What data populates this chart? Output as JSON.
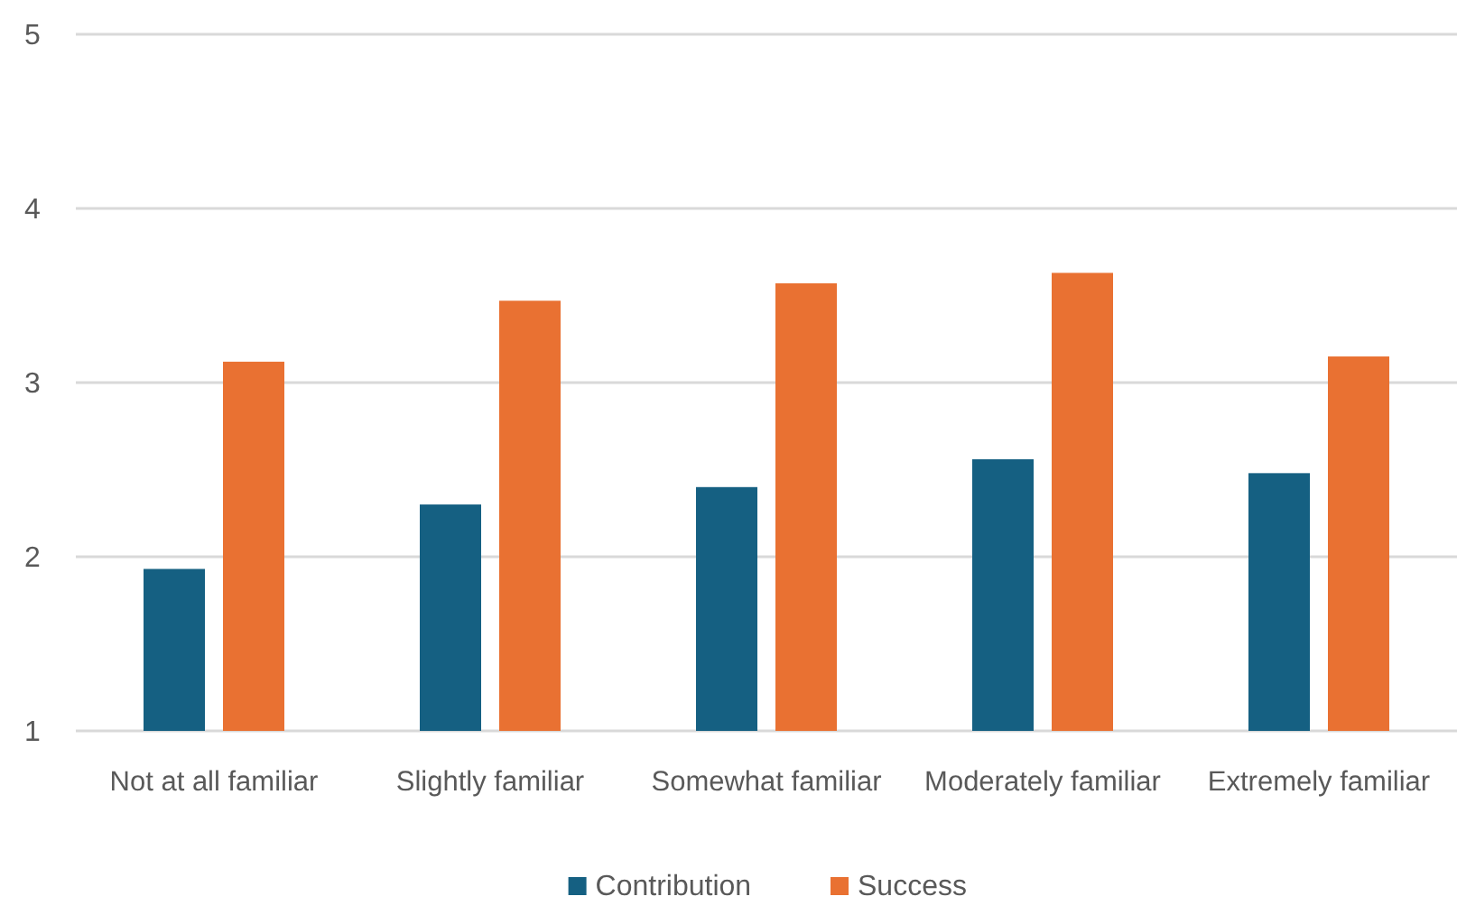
{
  "chart_data": {
    "type": "bar",
    "categories": [
      "Not at all familiar",
      "Slightly familiar",
      "Somewhat familiar",
      "Moderately familiar",
      "Extremely familiar"
    ],
    "series": [
      {
        "name": "Contribution",
        "color": "#156082",
        "values": [
          1.93,
          2.3,
          2.4,
          2.56,
          2.48
        ]
      },
      {
        "name": "Success",
        "color": "#e97132",
        "values": [
          3.12,
          3.47,
          3.57,
          3.63,
          3.15
        ]
      }
    ],
    "ylim": [
      1,
      5
    ],
    "yticks": [
      1,
      2,
      3,
      4,
      5
    ],
    "grid": "y",
    "legend": "bottom"
  }
}
